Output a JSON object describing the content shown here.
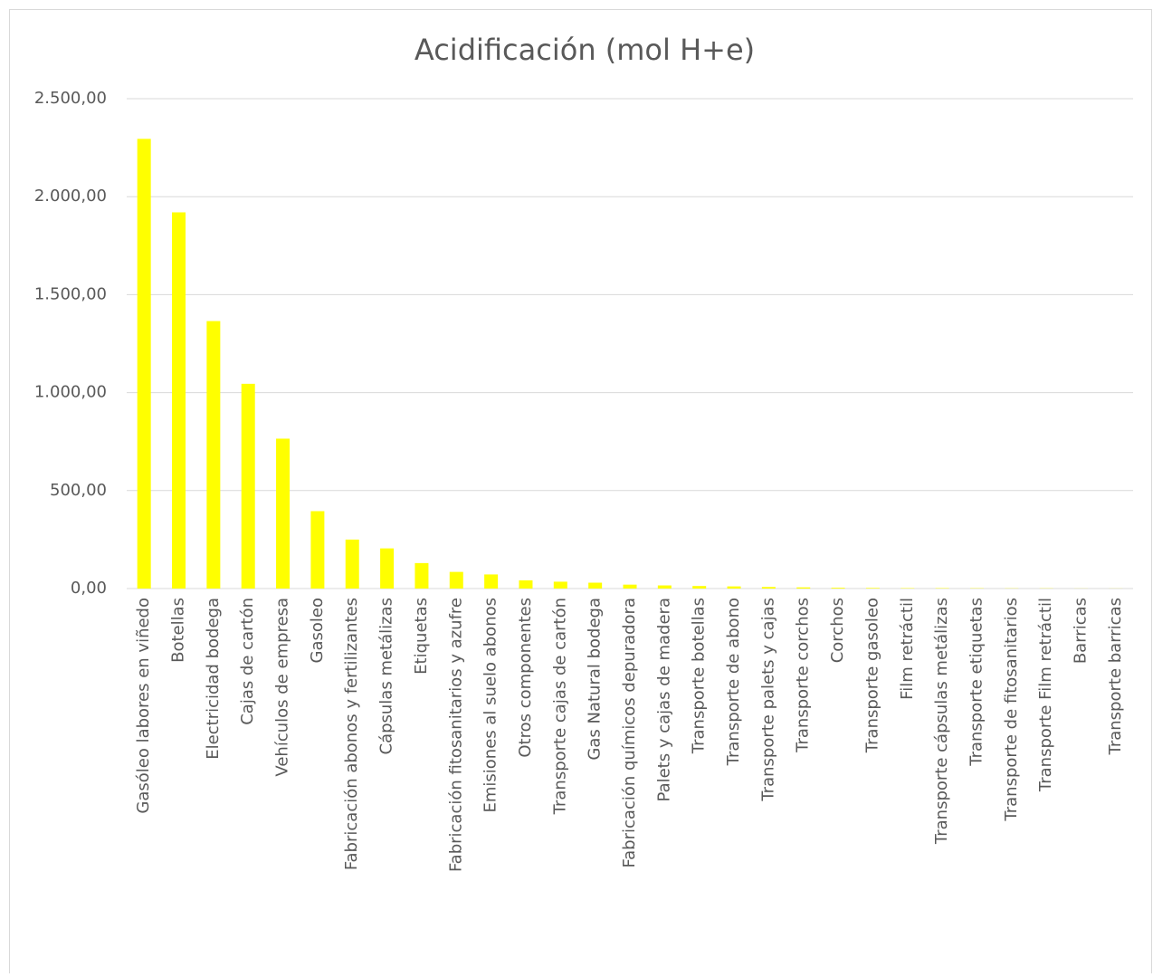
{
  "chart_data": {
    "type": "bar",
    "title": "Acidificación (mol H+e)",
    "categories": [
      "Gasóleo labores en viñedo",
      "Botellas",
      "Electricidad bodega",
      "Cajas de cartón",
      "Vehículos de empresa",
      "Gasoleo",
      "Fabricación abonos y fertilizantes",
      "Cápsulas metálizas",
      "Etiquetas",
      "Fabricación fitosanitarios y azufre",
      "Emisiones al suelo abonos",
      "Otros componentes",
      "Transporte cajas de cartón",
      "Gas Natural bodega",
      "Fabricación químicos depuradora",
      "Palets y cajas de madera",
      "Transporte botellas",
      "Transporte de abono",
      "Transporte palets y cajas",
      "Transporte corchos",
      "Corchos",
      "Transporte gasoleo",
      "Film retráctil",
      "Transporte cápsulas metálizas",
      "Transporte etiquetas",
      "Transporte de fitosanitarios",
      "Transporte Film retráctil",
      "Barricas",
      "Transporte barricas"
    ],
    "values": [
      2295,
      1920,
      1365,
      1045,
      765,
      395,
      250,
      205,
      130,
      85,
      72,
      42,
      35,
      30,
      20,
      16,
      13,
      11,
      8,
      6,
      4,
      3,
      2,
      2,
      1.5,
      1,
      1,
      0.5,
      0.5
    ],
    "color": "#ffff00",
    "ylim": [
      0,
      2500
    ],
    "yticks": [
      {
        "value": 0,
        "label": "0,00"
      },
      {
        "value": 500,
        "label": "500,00"
      },
      {
        "value": 1000,
        "label": "1.000,00"
      },
      {
        "value": 1500,
        "label": "1.500,00"
      },
      {
        "value": 2000,
        "label": "2.000,00"
      },
      {
        "value": 2500,
        "label": "2.500,00"
      }
    ],
    "grid": true
  }
}
